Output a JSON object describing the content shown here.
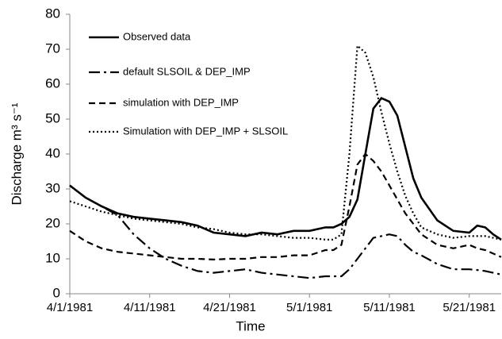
{
  "chart_data": {
    "type": "line",
    "x_label": "Time",
    "y_label": "Discharge m³ s⁻¹",
    "x": [
      "4/1/1981",
      "4/3/1981",
      "4/5/1981",
      "4/7/1981",
      "4/9/1981",
      "4/11/1981",
      "4/13/1981",
      "4/15/1981",
      "4/17/1981",
      "4/19/1981",
      "4/21/1981",
      "4/23/1981",
      "4/25/1981",
      "4/27/1981",
      "4/29/1981",
      "5/1/1981",
      "5/3/1981",
      "5/4/1981",
      "5/5/1981",
      "5/6/1981",
      "5/7/1981",
      "5/8/1981",
      "5/9/1981",
      "5/10/1981",
      "5/11/1981",
      "5/12/1981",
      "5/13/1981",
      "5/14/1981",
      "5/15/1981",
      "5/17/1981",
      "5/19/1981",
      "5/21/1981",
      "5/22/1981",
      "5/23/1981",
      "5/24/1981",
      "5/25/1981"
    ],
    "xlim": [
      "4/1/1981",
      "5/25/1981"
    ],
    "xticks": [
      "4/1/1981",
      "4/11/1981",
      "4/21/1981",
      "5/1/1981",
      "5/11/1981",
      "5/21/1981"
    ],
    "ylim": [
      0,
      80
    ],
    "yticks": [
      0,
      10,
      20,
      30,
      40,
      50,
      60,
      70,
      80
    ],
    "grid": false,
    "legend": "upper left",
    "series": [
      {
        "name": "Observed data",
        "color": "#000000",
        "style": "solid",
        "values": [
          31,
          27.5,
          25,
          23,
          22,
          21.5,
          21,
          20.5,
          19.5,
          17.5,
          17,
          16.5,
          17.5,
          17,
          18,
          18,
          19,
          19,
          20,
          22,
          27,
          40,
          53,
          56,
          55,
          51,
          42,
          33,
          27.5,
          21,
          18,
          17.5,
          19.5,
          19,
          17,
          15.5
        ]
      },
      {
        "name": "default SLSOIL & DEP_IMP",
        "color": "#000000",
        "style": "dashdot",
        "values": [
          31,
          27.5,
          25,
          22.5,
          17,
          13,
          10,
          8,
          6.5,
          6,
          6.5,
          7,
          6,
          5.5,
          5,
          4.5,
          5,
          5,
          5,
          7,
          10,
          13,
          16,
          16.5,
          17,
          16.5,
          14,
          12,
          11,
          8.5,
          7,
          7,
          6.8,
          6.5,
          6,
          5.5
        ]
      },
      {
        "name": "simulation with DEP_IMP",
        "color": "#000000",
        "style": "dashed",
        "values": [
          18,
          15,
          13,
          12,
          11.5,
          11,
          10.5,
          10,
          10,
          9.8,
          10,
          10,
          10.5,
          10.5,
          11,
          11,
          12.5,
          12.5,
          14,
          25,
          37,
          40,
          38,
          35,
          31,
          27,
          23,
          20,
          17,
          14,
          13,
          14,
          13,
          12.5,
          11.5,
          10.5
        ]
      },
      {
        "name": "Simulation with DEP_IMP + SLSOIL",
        "color": "#000000",
        "style": "dotted",
        "values": [
          26.5,
          25,
          23.5,
          22.5,
          21.5,
          21,
          20.5,
          20,
          19,
          18.5,
          17.5,
          17,
          17,
          16.5,
          16,
          16,
          15.5,
          15.5,
          17,
          40,
          71,
          69,
          62,
          52,
          43,
          35,
          28,
          23,
          19,
          17,
          16,
          16.5,
          16.5,
          16.5,
          16,
          15.5
        ]
      }
    ]
  }
}
